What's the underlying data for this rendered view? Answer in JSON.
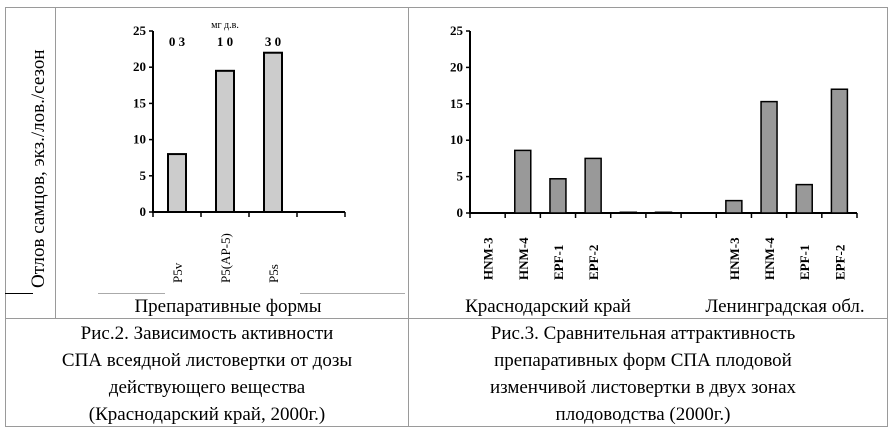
{
  "ylabel": "Отлов самцов, экз./лов./сезон",
  "chart_data": [
    {
      "type": "bar",
      "title": "",
      "xlabel": "Препаративные формы",
      "ylabel": "Отлов самцов, экз./лов./сезон",
      "ylim": [
        0,
        25
      ],
      "yticks": [
        "0",
        "5",
        "10",
        "15",
        "20",
        "25"
      ],
      "categories": [
        "P5v",
        "P5(AP-5)",
        "P5s"
      ],
      "values": [
        8,
        19.5,
        22
      ],
      "dose_unit": "мг д.в.",
      "dose_labels": [
        "0 3",
        "1 0",
        "3 0"
      ],
      "bar_color": "#cccccc"
    },
    {
      "type": "bar",
      "title": "",
      "ylim": [
        0,
        25
      ],
      "yticks": [
        "0",
        "5",
        "10",
        "15",
        "20",
        "25"
      ],
      "categories": [
        "HNM-3",
        "HNM-4",
        "EPF-1",
        "EPF-2",
        "",
        "",
        "",
        "HNM-3",
        "HNM-4",
        "EPF-1",
        "EPF-2"
      ],
      "values": [
        0,
        8.6,
        4.7,
        7.5,
        0.1,
        0.1,
        0,
        1.7,
        15.3,
        3.9,
        17
      ],
      "groups": [
        "Краснодарский край",
        "Ленинградская обл."
      ],
      "bar_color": "#999999"
    }
  ],
  "captions": {
    "fig2": [
      "Рис.2. Зависимость активности",
      "СПА всеядной листовертки от дозы",
      "действующего вещества",
      "(Краснодарский край, 2000г.)"
    ],
    "fig3": [
      "Рис.3. Сравнительная аттрактивность",
      "препаративных форм СПА плодовой",
      "изменчивой листовертки в двух зонах",
      "плодоводства (2000г.)"
    ]
  }
}
